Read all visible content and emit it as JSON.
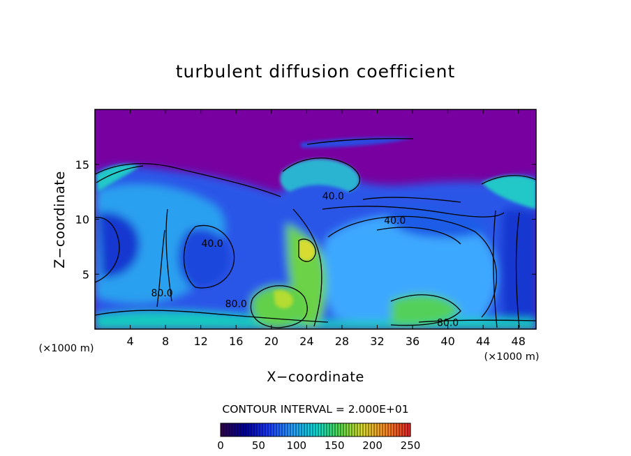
{
  "chart_data": {
    "type": "heatmap",
    "title": "turbulent diffusion coefficient",
    "xlabel": "X−coordinate",
    "ylabel": "Z−coordinate",
    "x_unit_left": "(×1000 m)",
    "x_unit_right": "(×1000 m)",
    "xlim": [
      0,
      50
    ],
    "ylim": [
      0,
      20
    ],
    "x_ticks": [
      {
        "value": 4,
        "label": "4"
      },
      {
        "value": 8,
        "label": "8"
      },
      {
        "value": 12,
        "label": "12"
      },
      {
        "value": 16,
        "label": "16"
      },
      {
        "value": 20,
        "label": "20"
      },
      {
        "value": 24,
        "label": "24"
      },
      {
        "value": 28,
        "label": "28"
      },
      {
        "value": 32,
        "label": "32"
      },
      {
        "value": 36,
        "label": "36"
      },
      {
        "value": 40,
        "label": "40"
      },
      {
        "value": 44,
        "label": "44"
      },
      {
        "value": 48,
        "label": "48"
      }
    ],
    "y_ticks": [
      {
        "value": 5,
        "label": "5"
      },
      {
        "value": 10,
        "label": "10"
      },
      {
        "value": 15,
        "label": "15"
      }
    ],
    "contour_interval_text": "CONTOUR INTERVAL = 2.000E+01",
    "contour_labels": [
      {
        "text": "40.0",
        "x": 13.3,
        "z": 7.5
      },
      {
        "text": "80.0",
        "x": 7.6,
        "z": 3.0
      },
      {
        "text": "80.0",
        "x": 16.0,
        "z": 2.0
      },
      {
        "text": "40.0",
        "x": 27.0,
        "z": 11.8
      },
      {
        "text": "40.0",
        "x": 34.0,
        "z": 9.6
      },
      {
        "text": "80.0",
        "x": 40.0,
        "z": 0.3
      }
    ],
    "colorbar": {
      "min": 0,
      "max": 250,
      "step": 20,
      "tick_labels": [
        "0",
        "50",
        "100",
        "150",
        "200",
        "250"
      ],
      "tick_values": [
        0,
        50,
        100,
        150,
        200,
        250
      ],
      "colors": [
        "#300050",
        "#0000a0",
        "#1e3cff",
        "#28a0ff",
        "#00dcdc",
        "#50dc50",
        "#dcdc28",
        "#ff8c1e",
        "#e62828"
      ]
    },
    "regions": [
      {
        "name": "upper-stable-layer",
        "value": 0,
        "color": "#7800a0"
      },
      {
        "name": "left-eddy-core",
        "value": 30,
        "color": "#1e32d2"
      },
      {
        "name": "left-eddy-rim",
        "value": 60,
        "color": "#2896ff"
      },
      {
        "name": "central-updraft",
        "value": 130,
        "color": "#78dc3c"
      },
      {
        "name": "right-eddy",
        "value": 70,
        "color": "#3ca0ff"
      },
      {
        "name": "surface-layer",
        "value": 100,
        "color": "#14c8c8"
      }
    ]
  }
}
